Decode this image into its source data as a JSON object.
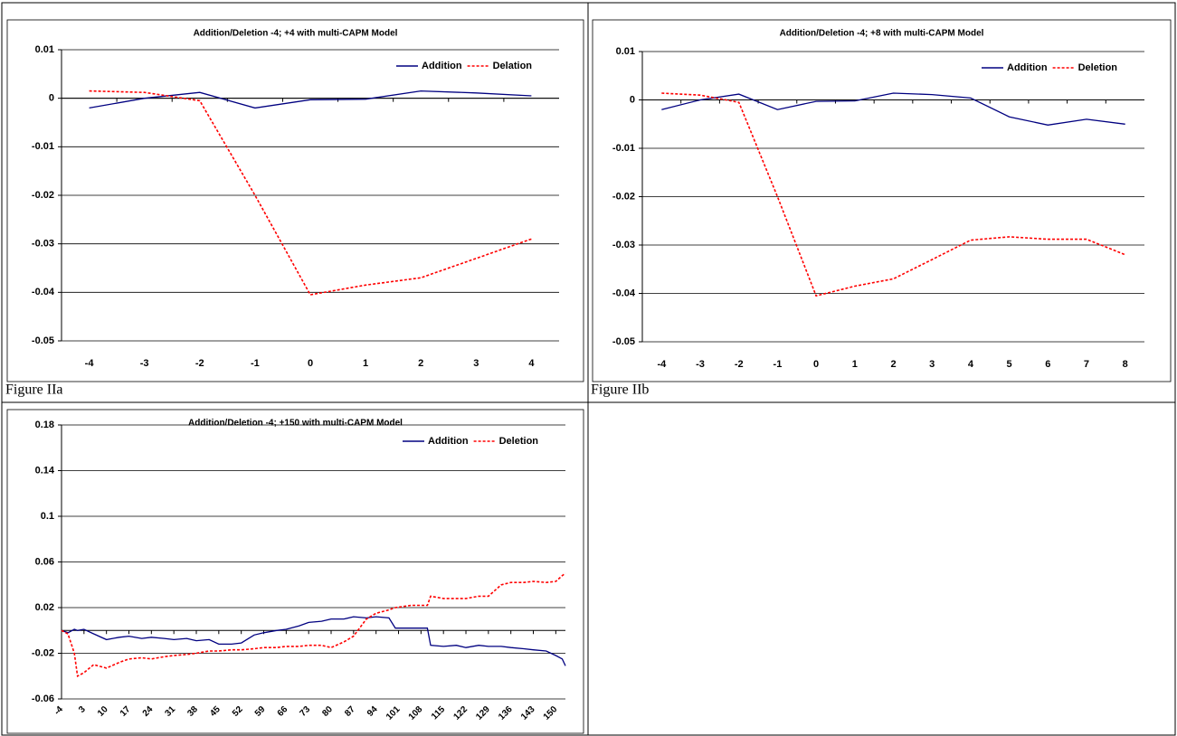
{
  "chart_data": [
    {
      "type": "line",
      "title": "Addition/Deletion -4; +4 with multi-CAPM Model",
      "caption": "Figure IIa",
      "categories": [
        "-4",
        "-3",
        "-2",
        "-1",
        "0",
        "1",
        "2",
        "3",
        "4"
      ],
      "series": [
        {
          "name": "Addition",
          "color": "#000080",
          "line_style": "solid",
          "values": [
            -0.002,
            0,
            0.0012,
            -0.002,
            -0.0003,
            -0.0002,
            0.0015,
            0.0011,
            0.0005
          ]
        },
        {
          "name": "Delation",
          "color": "#ff0000",
          "line_style": "dashed",
          "values": [
            0.0015,
            0.0012,
            -0.0005,
            -0.02,
            -0.0405,
            -0.0385,
            -0.037,
            -0.033,
            -0.029
          ]
        }
      ],
      "ylim": [
        -0.05,
        0.01
      ],
      "yticks": [
        0.01,
        0,
        -0.01,
        -0.02,
        -0.03,
        -0.04,
        -0.05
      ],
      "grid": true,
      "legend": "upper right"
    },
    {
      "type": "line",
      "title": "Addition/Deletion -4; +8 with multi-CAPM Model",
      "caption": "Figure IIb",
      "categories": [
        "-4",
        "-3",
        "-2",
        "-1",
        "0",
        "1",
        "2",
        "3",
        "4",
        "5",
        "6",
        "7",
        "8"
      ],
      "series": [
        {
          "name": "Addition",
          "color": "#000080",
          "line_style": "solid",
          "values": [
            -0.002,
            0,
            0.0012,
            -0.002,
            -0.0003,
            -0.0002,
            0.0014,
            0.0011,
            0.0004,
            -0.0035,
            -0.0052,
            -0.004,
            -0.005
          ]
        },
        {
          "name": "Deletion",
          "color": "#ff0000",
          "line_style": "dashed",
          "values": [
            0.0014,
            0.001,
            -0.0005,
            -0.02,
            -0.0405,
            -0.0385,
            -0.037,
            -0.033,
            -0.029,
            -0.0283,
            -0.0288,
            -0.0288,
            -0.032
          ]
        }
      ],
      "ylim": [
        -0.05,
        0.01
      ],
      "yticks": [
        0.01,
        0,
        -0.01,
        -0.02,
        -0.03,
        -0.04,
        -0.05
      ],
      "grid": true,
      "legend": "upper right"
    },
    {
      "type": "line",
      "title": "Addition/Deletion -4; +150 with multi-CAPM Model",
      "x": [
        -4,
        -2,
        0,
        1,
        3,
        6,
        10,
        14,
        17,
        21,
        24,
        28,
        31,
        35,
        38,
        42,
        45,
        49,
        52,
        56,
        59,
        63,
        66,
        70,
        73,
        77,
        80,
        84,
        87,
        91,
        94,
        98,
        100,
        105,
        110,
        111,
        115,
        119,
        122,
        126,
        129,
        133,
        136,
        140,
        143,
        147,
        150,
        152,
        153
      ],
      "series": [
        {
          "name": "Addition",
          "color": "#000080",
          "line_style": "solid",
          "values": [
            0,
            -0.002,
            0.001,
            0,
            0.001,
            -0.003,
            -0.008,
            -0.006,
            -0.005,
            -0.007,
            -0.006,
            -0.007,
            -0.008,
            -0.007,
            -0.009,
            -0.008,
            -0.012,
            -0.012,
            -0.011,
            -0.004,
            -0.002,
            0,
            0.001,
            0.004,
            0.007,
            0.008,
            0.01,
            0.01,
            0.012,
            0.011,
            0.012,
            0.011,
            0.002,
            0.002,
            0.002,
            -0.013,
            -0.014,
            -0.013,
            -0.015,
            -0.013,
            -0.014,
            -0.014,
            -0.015,
            -0.016,
            -0.017,
            -0.018,
            -0.022,
            -0.025,
            -0.031
          ]
        },
        {
          "name": "Deletion",
          "color": "#ff0000",
          "line_style": "dashed",
          "values": [
            0,
            -0.003,
            -0.02,
            -0.04,
            -0.037,
            -0.03,
            -0.033,
            -0.028,
            -0.025,
            -0.024,
            -0.025,
            -0.023,
            -0.022,
            -0.021,
            -0.02,
            -0.018,
            -0.018,
            -0.017,
            -0.017,
            -0.016,
            -0.015,
            -0.015,
            -0.014,
            -0.014,
            -0.013,
            -0.013,
            -0.015,
            -0.01,
            -0.005,
            0.01,
            0.015,
            0.018,
            0.02,
            0.022,
            0.022,
            0.03,
            0.028,
            0.028,
            0.028,
            0.03,
            0.03,
            0.04,
            0.042,
            0.042,
            0.043,
            0.042,
            0.043,
            0.048,
            0.05
          ]
        }
      ],
      "xlim": [
        -4,
        153
      ],
      "xticks": [
        -4,
        3,
        10,
        17,
        24,
        31,
        38,
        45,
        52,
        59,
        66,
        73,
        80,
        87,
        94,
        101,
        108,
        115,
        122,
        129,
        136,
        143,
        150
      ],
      "ylim": [
        -0.06,
        0.18
      ],
      "yticks": [
        0.18,
        0.14,
        0.1,
        0.06,
        0.02,
        -0.02,
        -0.06
      ],
      "grid": true,
      "legend": "upper right"
    }
  ]
}
